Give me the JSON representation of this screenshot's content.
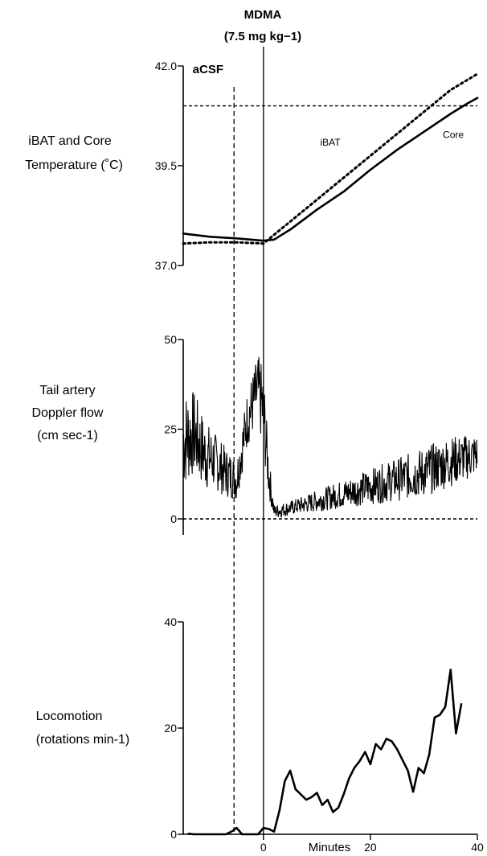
{
  "chart_data": {
    "type": "line",
    "shared_x": {
      "xlabel": "Minutes",
      "xlim": [
        -15,
        40
      ],
      "ticks": [
        "0",
        "20",
        "40"
      ],
      "tick_values": [
        0,
        20,
        40
      ]
    },
    "annotations": {
      "drug": "MDMA",
      "dose": "(7.5 mg kg−1)",
      "drug_time": 0,
      "vehicle": "aCSF",
      "vehicle_time": -5.5
    },
    "panels": [
      {
        "id": "temperature",
        "ylabel_lines": [
          "iBAT and Core",
          "Temperature (˚C)"
        ],
        "ylim": [
          37.0,
          42.0
        ],
        "ticks": [
          "37.0",
          "39.5",
          "42.0"
        ],
        "tick_values": [
          37.0,
          39.5,
          42.0
        ],
        "reference_lines": [
          41.0
        ],
        "series": [
          {
            "name": "iBAT",
            "style": "dotted",
            "x": [
              -15,
              -10,
              -5,
              0,
              5,
              10,
              15,
              20,
              25,
              30,
              35,
              40
            ],
            "y": [
              37.55,
              37.58,
              37.58,
              37.55,
              38.1,
              38.65,
              39.2,
              39.75,
              40.3,
              40.85,
              41.4,
              41.8
            ]
          },
          {
            "name": "Core",
            "style": "solid",
            "x": [
              -15,
              -10,
              -5,
              0,
              2,
              5,
              10,
              15,
              20,
              25,
              30,
              35,
              38,
              40
            ],
            "y": [
              37.8,
              37.72,
              37.68,
              37.62,
              37.65,
              37.9,
              38.4,
              38.85,
              39.4,
              39.9,
              40.35,
              40.8,
              41.05,
              41.2
            ]
          }
        ]
      },
      {
        "id": "tail_flow",
        "ylabel_lines": [
          "Tail artery",
          "Doppler flow",
          "(cm sec-1)"
        ],
        "ylim": [
          0,
          50
        ],
        "ticks": [
          "0",
          "25",
          "50"
        ],
        "tick_values": [
          0,
          25,
          50
        ],
        "reference_lines": [
          0
        ],
        "series": [
          {
            "name": "Tail artery Doppler flow",
            "style": "noisy",
            "x": [
              -15,
              -13,
              -11,
              -9,
              -7,
              -5,
              -3,
              -1,
              0,
              1,
              2,
              5,
              10,
              15,
              20,
              25,
              30,
              35,
              40
            ],
            "y": [
              22,
              24,
              18,
              16,
              13,
              11,
              28,
              36,
              30,
              12,
              2,
              3,
              5,
              7,
              9,
              11,
              13,
              16,
              18
            ],
            "amplitude": [
              14,
              12,
              10,
              8,
              7,
              6,
              8,
              10,
              12,
              6,
              2,
              2,
              3,
              4,
              5,
              6,
              7,
              7,
              6
            ]
          }
        ]
      },
      {
        "id": "locomotion",
        "ylabel_lines": [
          "Locomotion",
          "(rotations min-1)"
        ],
        "ylim": [
          0,
          40
        ],
        "ticks": [
          "0",
          "20",
          "40"
        ],
        "tick_values": [
          0,
          20,
          40
        ],
        "reference_lines": [],
        "series": [
          {
            "name": "Locomotion",
            "style": "solid",
            "x": [
              -14,
              -13,
              -12,
              -11,
              -10,
              -9,
              -8,
              -7,
              -6,
              -5,
              -4,
              -3,
              -2,
              -1,
              0,
              1,
              2,
              3,
              4,
              5,
              6,
              7,
              8,
              9,
              10,
              11,
              12,
              13,
              14,
              15,
              16,
              17,
              18,
              19,
              20,
              21,
              22,
              23,
              24,
              25,
              26,
              27,
              28,
              29,
              30,
              31,
              32,
              33,
              34,
              35,
              36,
              37
            ],
            "y": [
              0.1,
              0,
              0,
              0,
              0,
              0,
              0,
              0,
              0.5,
              1.2,
              0,
              0,
              0,
              0,
              1.2,
              1.0,
              0.5,
              4.5,
              10.0,
              12.0,
              8.5,
              7.5,
              6.5,
              7.0,
              7.8,
              5.5,
              6.5,
              4.2,
              5.0,
              7.5,
              10.5,
              12.5,
              13.8,
              15.5,
              13.2,
              17.0,
              16.0,
              18.0,
              17.5,
              16.0,
              14.0,
              12.0,
              8.0,
              12.5,
              11.5,
              15.0,
              22.0,
              22.5,
              24.0,
              31.0,
              19.0,
              24.5
            ]
          }
        ]
      }
    ]
  }
}
